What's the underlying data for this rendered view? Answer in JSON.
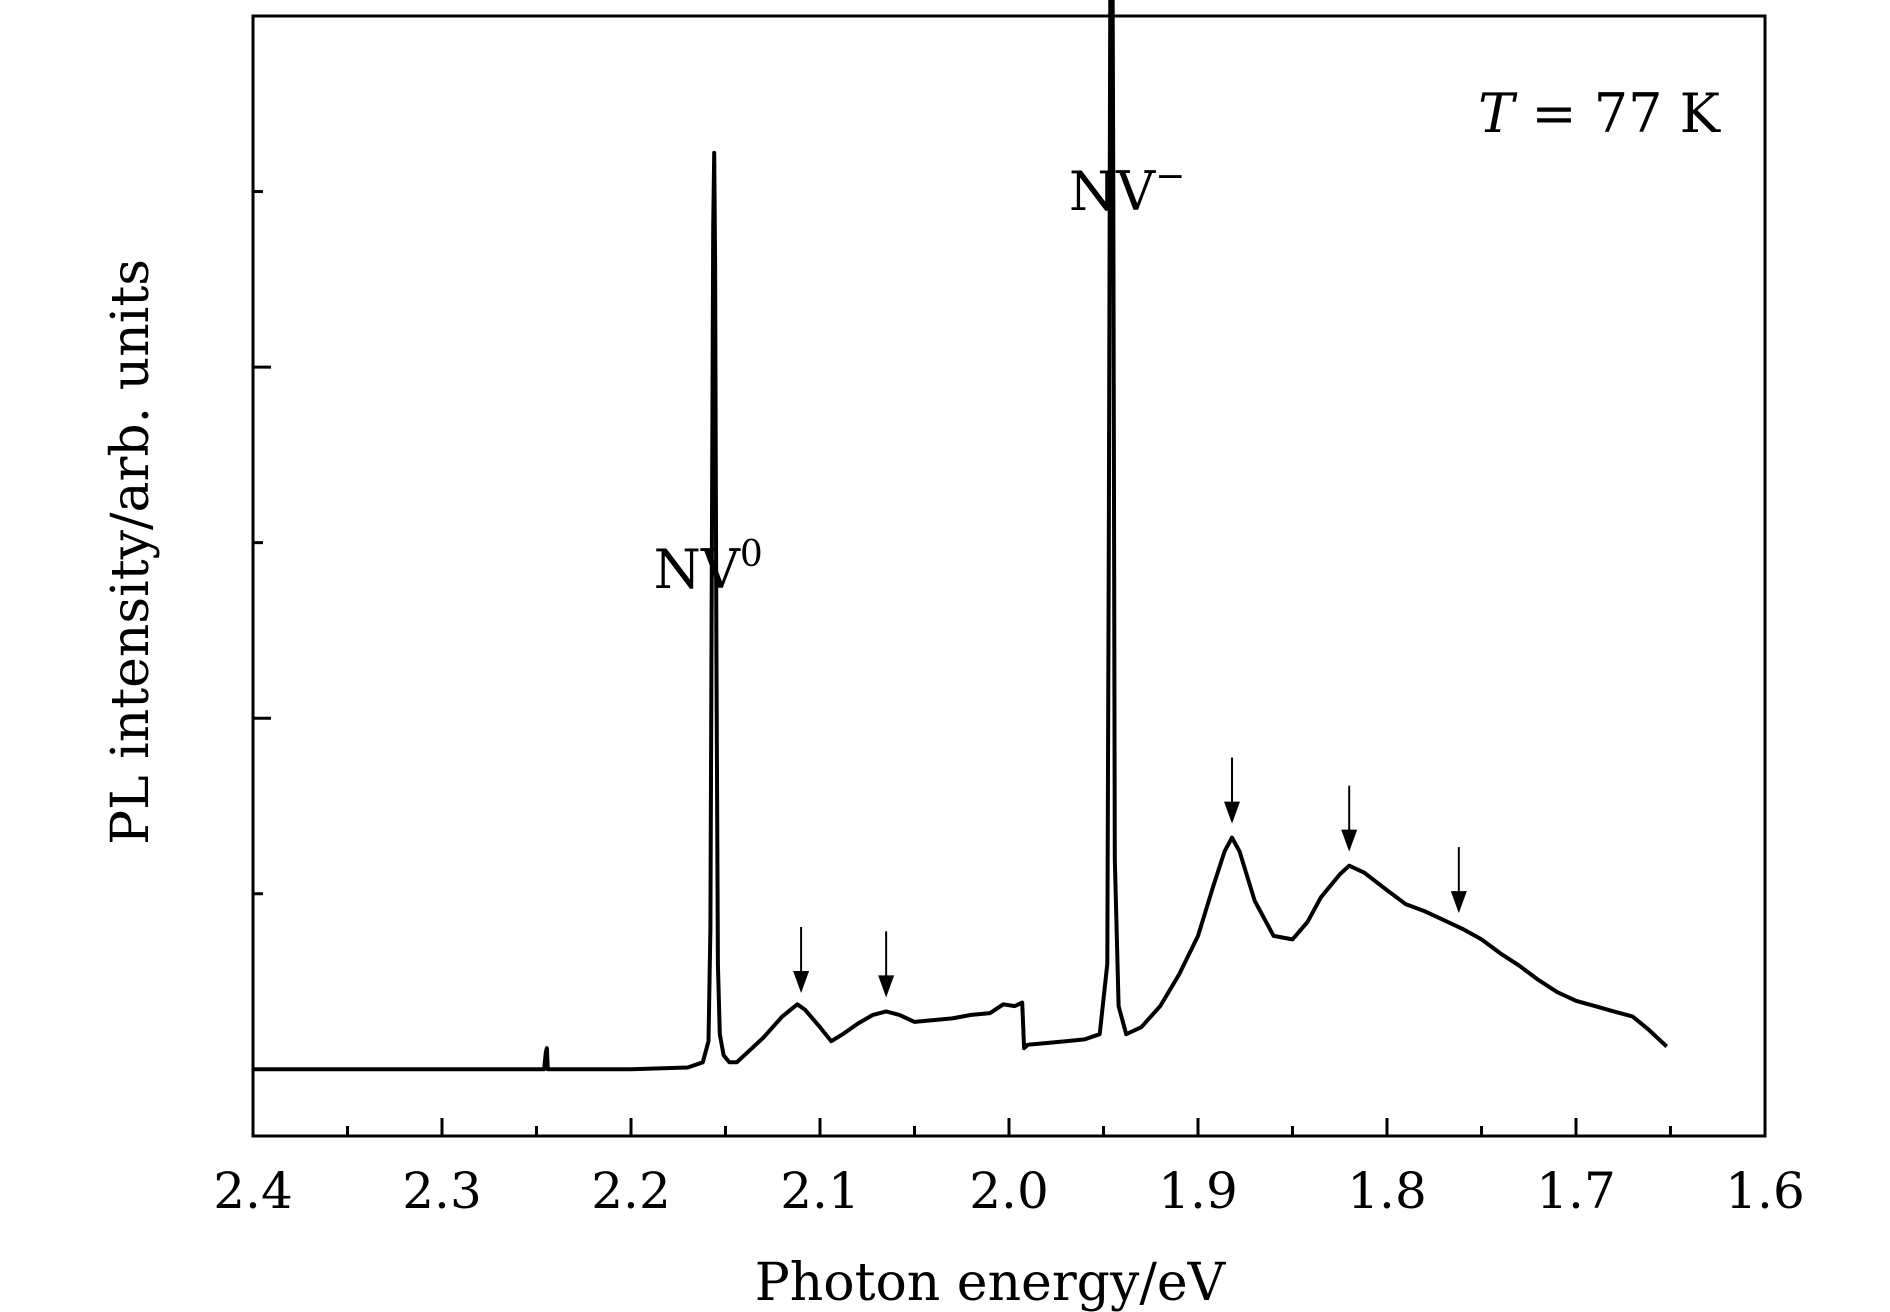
{
  "chart_data": {
    "type": "line",
    "title": "",
    "xlabel": "Photon energy/eV",
    "ylabel": "PL intensity/arb. units",
    "xlim": [
      2.4,
      1.6
    ],
    "x_reversed": true,
    "ylim": [
      -0.19,
      3.0
    ],
    "y_tick_labels_shown": false,
    "grid": false,
    "legend": "none",
    "x_ticks": [
      "2.4",
      "2.3",
      "2.2",
      "2.1",
      "2.0",
      "1.9",
      "1.8",
      "1.7",
      "1.6"
    ],
    "annotations": {
      "temperature": {
        "italic": "T",
        "text": " = 77 K"
      },
      "nv0": {
        "base": "NV",
        "sup": "0",
        "x": 2.156
      },
      "nvminus": {
        "base": "NV",
        "sup": "−",
        "x": 1.946
      }
    },
    "arrows_x": [
      2.11,
      2.065,
      1.882,
      1.82,
      1.762
    ],
    "series": [
      {
        "color": "#000000",
        "x": [
          2.4,
          2.3,
          2.246,
          2.245,
          2.2445,
          2.244,
          2.243,
          2.2,
          2.17,
          2.162,
          2.159,
          2.158,
          2.1572,
          2.1565,
          2.156,
          2.1555,
          2.1548,
          2.154,
          2.153,
          2.151,
          2.148,
          2.144,
          2.138,
          2.13,
          2.12,
          2.112,
          2.108,
          2.1,
          2.094,
          2.088,
          2.08,
          2.072,
          2.065,
          2.058,
          2.05,
          2.04,
          2.03,
          2.02,
          2.01,
          2.003,
          1.997,
          1.993,
          1.992,
          1.99,
          1.98,
          1.97,
          1.96,
          1.952,
          1.948,
          1.9472,
          1.9465,
          1.946,
          1.9455,
          1.9448,
          1.944,
          1.942,
          1.938,
          1.93,
          1.92,
          1.91,
          1.9,
          1.892,
          1.886,
          1.882,
          1.878,
          1.87,
          1.86,
          1.85,
          1.842,
          1.835,
          1.825,
          1.82,
          1.812,
          1.8,
          1.79,
          1.78,
          1.77,
          1.76,
          1.75,
          1.74,
          1.73,
          1.72,
          1.71,
          1.7,
          1.69,
          1.68,
          1.67,
          1.662,
          1.652
        ],
        "y": [
          0.0,
          0.0,
          0.0,
          0.05,
          0.06,
          0.0,
          0.0,
          0.0,
          0.005,
          0.02,
          0.08,
          0.4,
          1.5,
          2.4,
          2.61,
          2.3,
          1.2,
          0.3,
          0.1,
          0.04,
          0.02,
          0.02,
          0.05,
          0.09,
          0.15,
          0.185,
          0.17,
          0.12,
          0.08,
          0.1,
          0.13,
          0.155,
          0.165,
          0.155,
          0.135,
          0.14,
          0.145,
          0.155,
          0.16,
          0.185,
          0.18,
          0.19,
          0.06,
          0.07,
          0.075,
          0.08,
          0.085,
          0.1,
          0.3,
          1.5,
          2.9,
          3.75,
          3.6,
          2.5,
          0.6,
          0.18,
          0.1,
          0.12,
          0.18,
          0.27,
          0.38,
          0.52,
          0.62,
          0.66,
          0.62,
          0.48,
          0.38,
          0.37,
          0.42,
          0.49,
          0.555,
          0.58,
          0.56,
          0.51,
          0.47,
          0.45,
          0.425,
          0.4,
          0.37,
          0.33,
          0.295,
          0.255,
          0.22,
          0.195,
          0.18,
          0.165,
          0.15,
          0.115,
          0.065
        ]
      }
    ]
  }
}
